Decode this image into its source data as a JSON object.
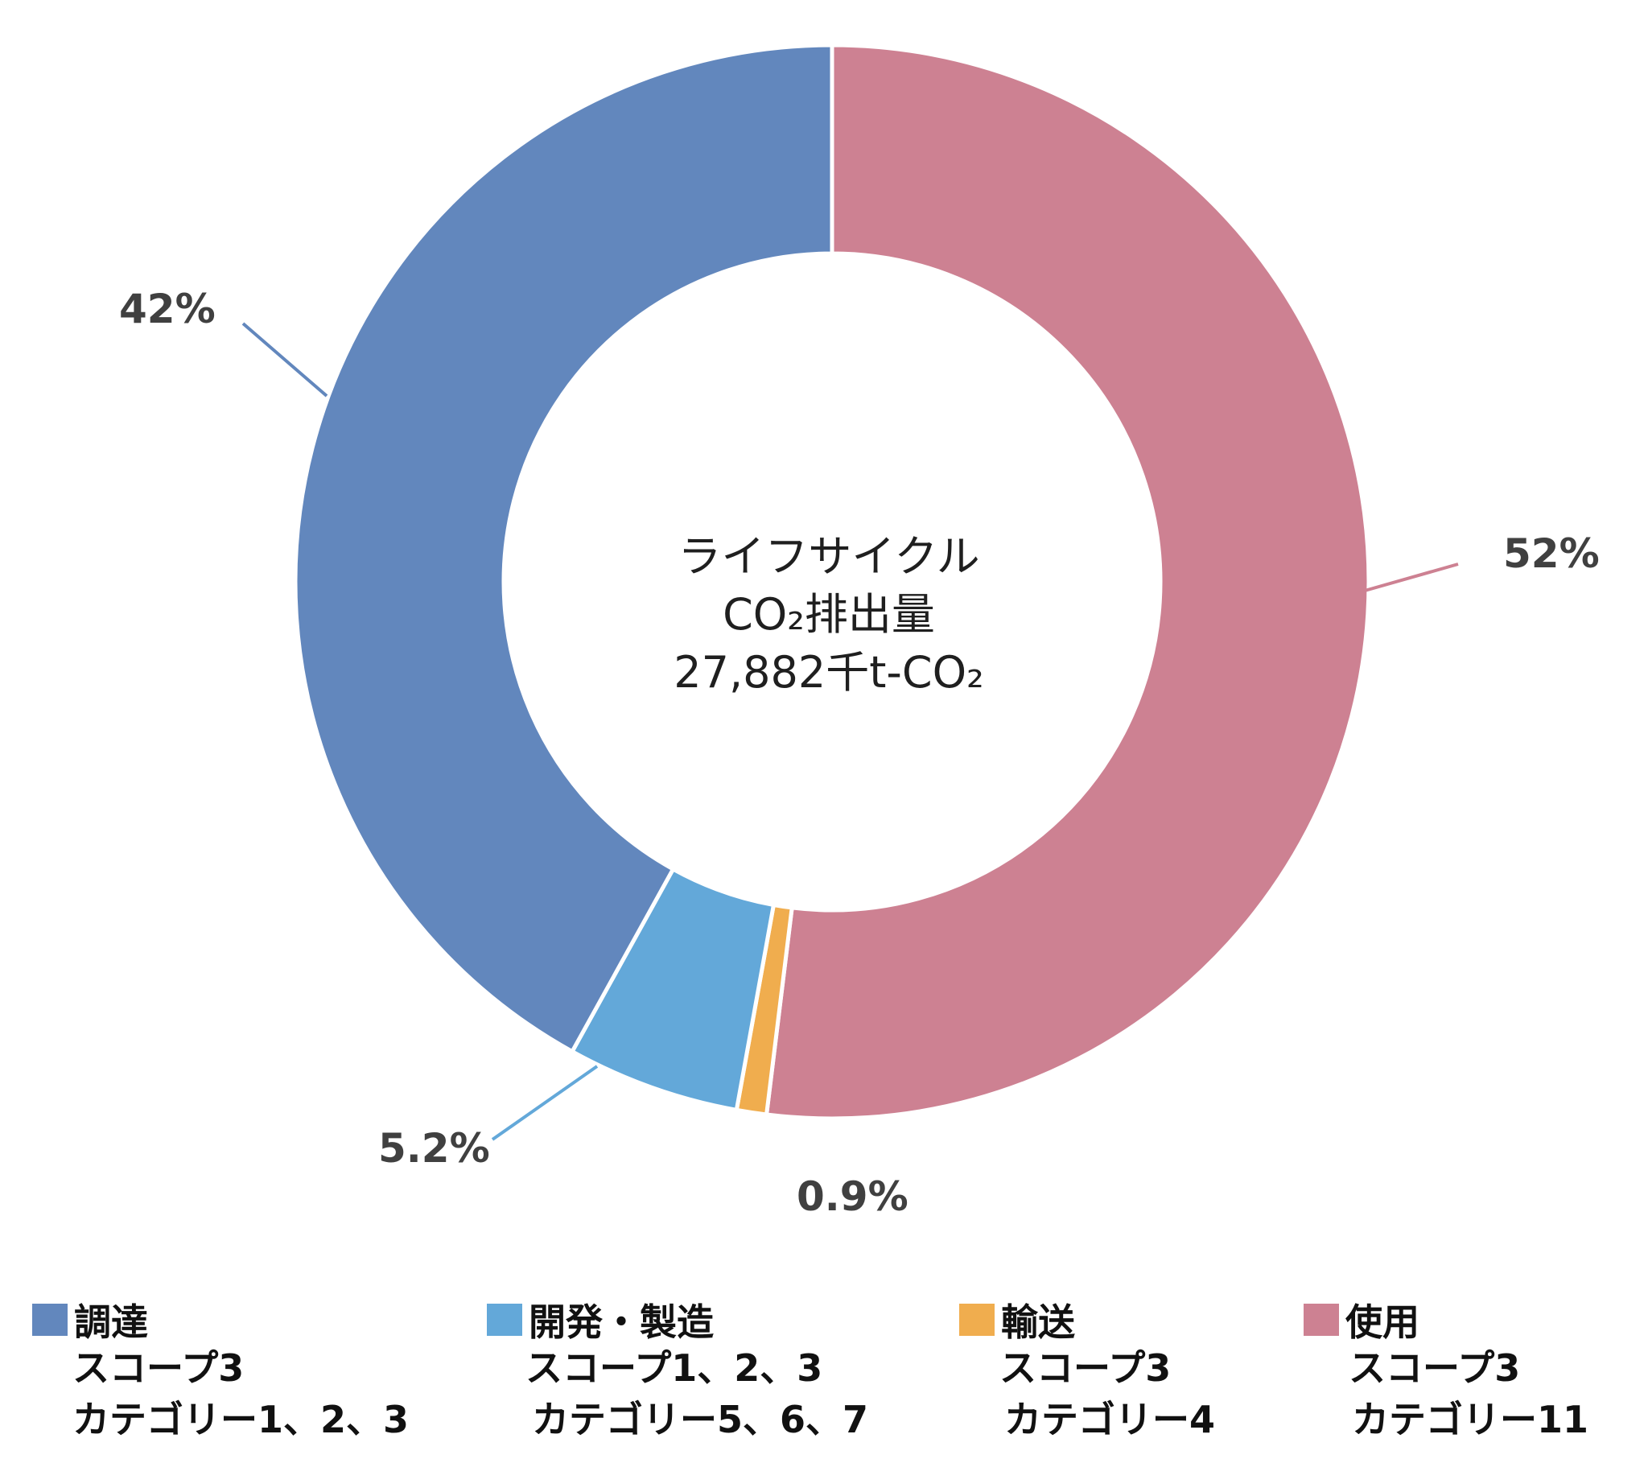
{
  "chart_data": {
    "type": "pie",
    "title": "",
    "center_label": [
      "ライフサイクル",
      "CO₂排出量",
      "27,882千t-CO₂"
    ],
    "categories": [
      "調達",
      "開発・製造",
      "輸送",
      "使用"
    ],
    "values": [
      42,
      5.2,
      0.9,
      52
    ],
    "data_labels": [
      "42%",
      "5.2%",
      "0.9%",
      "52%"
    ],
    "colors": [
      "#6287bd",
      "#63a8d9",
      "#f0ad4e",
      "#cd8192"
    ],
    "legend_placement": "bottom",
    "legend": [
      {
        "name": "調達",
        "line1": "スコープ3",
        "line2": "カテゴリー1、2、3"
      },
      {
        "name": "開発・製造",
        "line1": "スコープ1、2、3",
        "line2": "カテゴリー5、6、7"
      },
      {
        "name": "輸送",
        "line1": "スコープ3",
        "line2": "カテゴリー4"
      },
      {
        "name": "使用",
        "line1": "スコープ3",
        "line2": "カテゴリー11"
      }
    ]
  }
}
